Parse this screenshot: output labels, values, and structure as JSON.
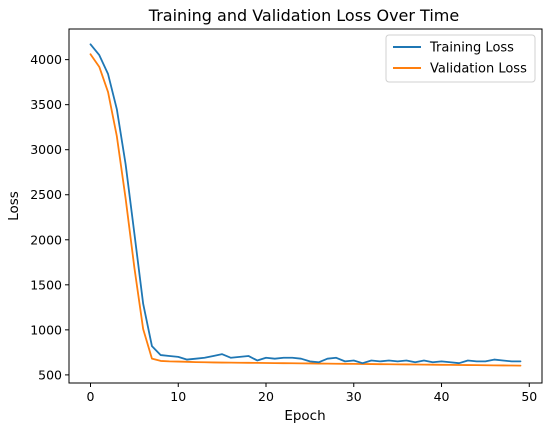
{
  "chart_data": {
    "type": "line",
    "title": "Training and Validation Loss Over Time",
    "xlabel": "Epoch",
    "ylabel": "Loss",
    "xlim": [
      -2.45,
      51.45
    ],
    "ylim": [
      410,
      4340
    ],
    "xticks": [
      0,
      10,
      20,
      30,
      40,
      50
    ],
    "yticks": [
      500,
      1000,
      1500,
      2000,
      2500,
      3000,
      3500,
      4000
    ],
    "grid": false,
    "legend_position": "top-right",
    "x": [
      0,
      1,
      2,
      3,
      4,
      5,
      6,
      7,
      8,
      9,
      10,
      11,
      12,
      13,
      14,
      15,
      16,
      17,
      18,
      19,
      20,
      21,
      22,
      23,
      24,
      25,
      26,
      27,
      28,
      29,
      30,
      31,
      32,
      33,
      34,
      35,
      36,
      37,
      38,
      39,
      40,
      41,
      42,
      43,
      44,
      45,
      46,
      47,
      48,
      49
    ],
    "series": [
      {
        "name": "Training Loss",
        "color": "#1f77b4",
        "values": [
          4170,
          4050,
          3840,
          3450,
          2840,
          2070,
          1290,
          820,
          720,
          710,
          700,
          670,
          680,
          690,
          710,
          730,
          690,
          700,
          710,
          660,
          690,
          680,
          690,
          690,
          680,
          650,
          640,
          680,
          690,
          650,
          660,
          630,
          660,
          650,
          660,
          650,
          660,
          640,
          660,
          640,
          650,
          640,
          630,
          660,
          650,
          650,
          670,
          660,
          650,
          650
        ]
      },
      {
        "name": "Validation Loss",
        "color": "#ff7f0e",
        "values": [
          4060,
          3920,
          3640,
          3150,
          2460,
          1690,
          1010,
          680,
          655,
          650,
          648,
          645,
          642,
          640,
          638,
          637,
          636,
          635,
          634,
          633,
          632,
          631,
          630,
          629,
          628,
          627,
          626,
          625,
          624,
          623,
          622,
          621,
          620,
          619,
          618,
          617,
          616,
          615,
          614,
          613,
          612,
          611,
          610,
          609,
          608,
          607,
          606,
          605,
          604,
          603
        ]
      }
    ]
  }
}
